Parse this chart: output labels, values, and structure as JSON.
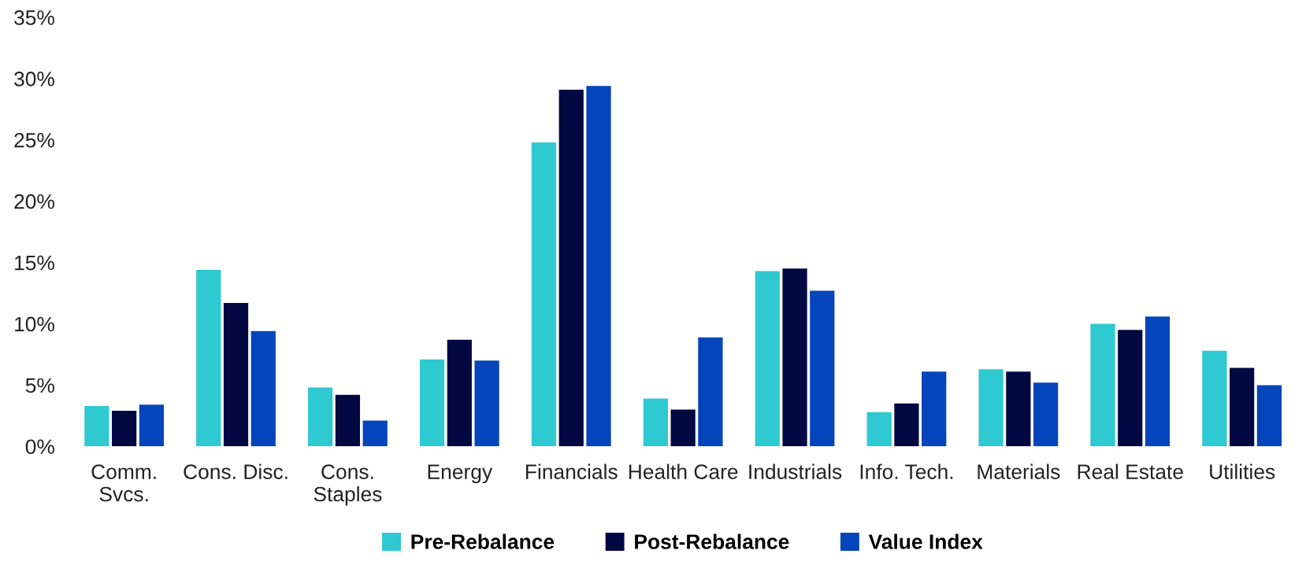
{
  "chart_data": {
    "type": "bar",
    "categories": [
      "Comm.\nSvcs.",
      "Cons. Disc.",
      "Cons.\nStaples",
      "Energy",
      "Financials",
      "Health Care",
      "Industrials",
      "Info. Tech.",
      "Materials",
      "Real Estate",
      "Utilities"
    ],
    "series": [
      {
        "name": "Pre-Rebalance",
        "color": "#2ec9d1",
        "values": [
          3.3,
          14.4,
          4.8,
          7.1,
          24.8,
          3.9,
          14.3,
          2.8,
          6.3,
          10.0,
          7.8
        ]
      },
      {
        "name": "Post-Rebalance",
        "color": "#020842",
        "values": [
          2.9,
          11.7,
          4.2,
          8.7,
          29.1,
          3.0,
          14.5,
          3.5,
          6.1,
          9.5,
          6.4
        ]
      },
      {
        "name": "Value Index",
        "color": "#0445bb",
        "values": [
          3.4,
          9.4,
          2.1,
          7.0,
          29.4,
          8.9,
          12.7,
          6.1,
          5.2,
          10.6,
          5.0
        ]
      }
    ],
    "ylim": [
      0,
      35
    ],
    "yticks": [
      {
        "value": 0,
        "label": "0%"
      },
      {
        "value": 5,
        "label": "5%"
      },
      {
        "value": 10,
        "label": "10%"
      },
      {
        "value": 15,
        "label": "15%"
      },
      {
        "value": 20,
        "label": "20%"
      },
      {
        "value": 25,
        "label": "25%"
      },
      {
        "value": 30,
        "label": "30%"
      },
      {
        "value": 35,
        "label": "35%"
      }
    ],
    "grid": false,
    "legend": "bottom"
  }
}
